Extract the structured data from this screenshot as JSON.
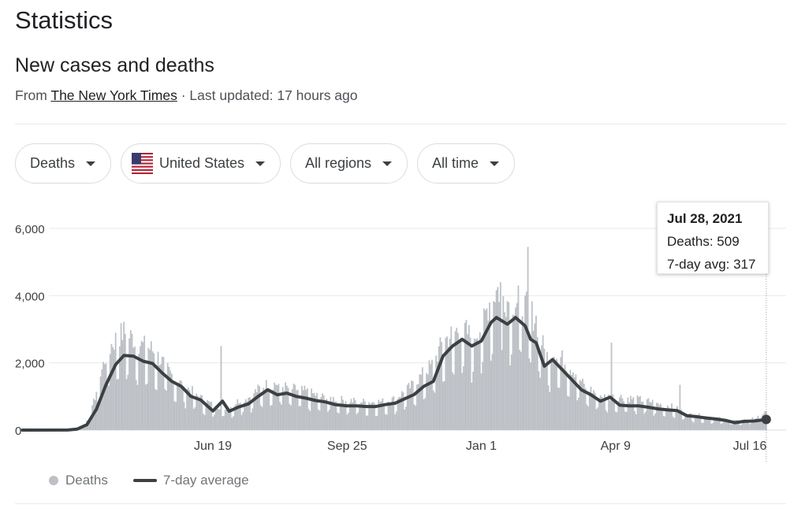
{
  "header": {
    "title": "Statistics",
    "subtitle": "New cases and deaths",
    "source_prefix": "From",
    "source_name": "The New York Times",
    "updated": "· Last updated: 17 hours ago"
  },
  "filters": [
    {
      "label": "Deaths",
      "name": "metric-filter"
    },
    {
      "label": "United States",
      "name": "location-filter",
      "icon": "us-flag-icon"
    },
    {
      "label": "All regions",
      "name": "region-filter"
    },
    {
      "label": "All time",
      "name": "time-range-filter"
    }
  ],
  "tooltip": {
    "date": "Jul 28, 2021",
    "deaths_label": "Deaths: 509",
    "avg_label": "7-day avg: 317"
  },
  "legend": {
    "bars_label": "Deaths",
    "line_label": "7-day average"
  },
  "colors": {
    "bars": "#bdc1c6",
    "line": "#3c4043",
    "grid": "#e8eaed",
    "text": "#202124",
    "subtext": "#4d5156"
  },
  "chart_data": {
    "type": "bar",
    "title": "",
    "xlabel": "",
    "ylabel": "",
    "ylim": [
      0,
      6000
    ],
    "yticks": [
      0,
      2000,
      4000,
      6000
    ],
    "ytick_labels": [
      "0",
      "2,000",
      "4,000",
      "6,000"
    ],
    "x_range": [
      "2020-02-01",
      "2021-07-28"
    ],
    "xticks": [
      {
        "label": "Jun 19",
        "date": "2020-06-19"
      },
      {
        "label": "Sep 25",
        "date": "2020-09-25"
      },
      {
        "label": "Jan 1",
        "date": "2021-01-01"
      },
      {
        "label": "Apr 9",
        "date": "2021-04-09"
      },
      {
        "label": "Jul 16",
        "date": "2021-07-16"
      }
    ],
    "grid": true,
    "legend_position": "bottom-left",
    "highlight": {
      "date": "2021-07-28",
      "deaths": 509,
      "avg": 317
    },
    "series": [
      {
        "name": "Deaths",
        "type": "bar",
        "points": [
          [
            "2020-02-01",
            0
          ],
          [
            "2020-03-01",
            5
          ],
          [
            "2020-03-10",
            30
          ],
          [
            "2020-03-17",
            120
          ],
          [
            "2020-03-22",
            450
          ],
          [
            "2020-03-27",
            1200
          ],
          [
            "2020-04-01",
            1900
          ],
          [
            "2020-04-06",
            2300
          ],
          [
            "2020-04-10",
            2500
          ],
          [
            "2020-04-15",
            2650
          ],
          [
            "2020-04-21",
            2500
          ],
          [
            "2020-04-28",
            2300
          ],
          [
            "2020-05-05",
            2200
          ],
          [
            "2020-05-12",
            1900
          ],
          [
            "2020-05-20",
            1500
          ],
          [
            "2020-05-27",
            1250
          ],
          [
            "2020-06-04",
            1050
          ],
          [
            "2020-06-11",
            850
          ],
          [
            "2020-06-19",
            680
          ],
          [
            "2020-06-26",
            620
          ],
          [
            "2020-07-01",
            600
          ],
          [
            "2020-07-08",
            800
          ],
          [
            "2020-07-15",
            880
          ],
          [
            "2020-07-22",
            1100
          ],
          [
            "2020-07-29",
            1250
          ],
          [
            "2020-08-05",
            1250
          ],
          [
            "2020-08-12",
            1150
          ],
          [
            "2020-08-19",
            1100
          ],
          [
            "2020-08-26",
            1050
          ],
          [
            "2020-09-02",
            950
          ],
          [
            "2020-09-09",
            880
          ],
          [
            "2020-09-16",
            850
          ],
          [
            "2020-09-25",
            800
          ],
          [
            "2020-10-02",
            780
          ],
          [
            "2020-10-09",
            760
          ],
          [
            "2020-10-16",
            760
          ],
          [
            "2020-10-23",
            780
          ],
          [
            "2020-10-30",
            850
          ],
          [
            "2020-11-06",
            1050
          ],
          [
            "2020-11-13",
            1250
          ],
          [
            "2020-11-20",
            1550
          ],
          [
            "2020-11-27",
            1800
          ],
          [
            "2020-12-04",
            2400
          ],
          [
            "2020-12-11",
            2600
          ],
          [
            "2020-12-18",
            2800
          ],
          [
            "2020-12-25",
            2500
          ],
          [
            "2021-01-01",
            2800
          ],
          [
            "2021-01-08",
            3600
          ],
          [
            "2021-01-13",
            3800
          ],
          [
            "2021-01-20",
            3500
          ],
          [
            "2021-01-27",
            3500
          ],
          [
            "2021-02-03",
            3300
          ],
          [
            "2021-02-10",
            3000
          ],
          [
            "2021-02-17",
            2000
          ],
          [
            "2021-02-24",
            2100
          ],
          [
            "2021-03-03",
            1850
          ],
          [
            "2021-03-10",
            1600
          ],
          [
            "2021-03-17",
            1200
          ],
          [
            "2021-03-24",
            1050
          ],
          [
            "2021-03-31",
            900
          ],
          [
            "2021-04-07",
            900
          ],
          [
            "2021-04-14",
            900
          ],
          [
            "2021-04-21",
            850
          ],
          [
            "2021-04-28",
            820
          ],
          [
            "2021-05-05",
            770
          ],
          [
            "2021-05-12",
            690
          ],
          [
            "2021-05-19",
            650
          ],
          [
            "2021-05-26",
            550
          ],
          [
            "2021-06-02",
            420
          ],
          [
            "2021-06-09",
            400
          ],
          [
            "2021-06-16",
            350
          ],
          [
            "2021-06-23",
            320
          ],
          [
            "2021-06-30",
            280
          ],
          [
            "2021-07-07",
            240
          ],
          [
            "2021-07-14",
            280
          ],
          [
            "2021-07-21",
            330
          ],
          [
            "2021-07-28",
            509
          ]
        ],
        "spikes": [
          [
            "2020-06-25",
            2500
          ],
          [
            "2021-02-04",
            5450
          ],
          [
            "2021-04-06",
            2600
          ],
          [
            "2021-05-26",
            1350
          ],
          [
            "2021-01-15",
            4400
          ],
          [
            "2021-01-28",
            4300
          ]
        ]
      },
      {
        "name": "7-day average",
        "type": "line",
        "points": [
          [
            "2020-02-01",
            0
          ],
          [
            "2020-03-05",
            2
          ],
          [
            "2020-03-12",
            30
          ],
          [
            "2020-03-19",
            160
          ],
          [
            "2020-03-26",
            620
          ],
          [
            "2020-04-02",
            1350
          ],
          [
            "2020-04-09",
            1950
          ],
          [
            "2020-04-15",
            2220
          ],
          [
            "2020-04-22",
            2200
          ],
          [
            "2020-04-29",
            2050
          ],
          [
            "2020-05-06",
            1980
          ],
          [
            "2020-05-13",
            1700
          ],
          [
            "2020-05-20",
            1450
          ],
          [
            "2020-05-27",
            1300
          ],
          [
            "2020-06-03",
            1000
          ],
          [
            "2020-06-10",
            900
          ],
          [
            "2020-06-19",
            570
          ],
          [
            "2020-06-26",
            860
          ],
          [
            "2020-07-01",
            560
          ],
          [
            "2020-07-08",
            690
          ],
          [
            "2020-07-15",
            780
          ],
          [
            "2020-07-22",
            1000
          ],
          [
            "2020-07-29",
            1200
          ],
          [
            "2020-08-05",
            1050
          ],
          [
            "2020-08-12",
            1100
          ],
          [
            "2020-08-19",
            1000
          ],
          [
            "2020-08-26",
            950
          ],
          [
            "2020-09-02",
            880
          ],
          [
            "2020-09-09",
            840
          ],
          [
            "2020-09-16",
            760
          ],
          [
            "2020-09-25",
            720
          ],
          [
            "2020-10-02",
            720
          ],
          [
            "2020-10-09",
            700
          ],
          [
            "2020-10-16",
            700
          ],
          [
            "2020-10-23",
            760
          ],
          [
            "2020-10-30",
            800
          ],
          [
            "2020-11-06",
            930
          ],
          [
            "2020-11-13",
            1060
          ],
          [
            "2020-11-20",
            1300
          ],
          [
            "2020-11-27",
            1450
          ],
          [
            "2020-12-04",
            2200
          ],
          [
            "2020-12-11",
            2500
          ],
          [
            "2020-12-18",
            2700
          ],
          [
            "2020-12-25",
            2500
          ],
          [
            "2021-01-01",
            2650
          ],
          [
            "2021-01-08",
            3200
          ],
          [
            "2021-01-12",
            3350
          ],
          [
            "2021-01-20",
            3150
          ],
          [
            "2021-01-26",
            3350
          ],
          [
            "2021-02-02",
            3100
          ],
          [
            "2021-02-06",
            2700
          ],
          [
            "2021-02-10",
            2600
          ],
          [
            "2021-02-16",
            1900
          ],
          [
            "2021-02-22",
            2100
          ],
          [
            "2021-03-01",
            1800
          ],
          [
            "2021-03-08",
            1500
          ],
          [
            "2021-03-15",
            1200
          ],
          [
            "2021-03-22",
            1050
          ],
          [
            "2021-03-29",
            860
          ],
          [
            "2021-04-05",
            980
          ],
          [
            "2021-04-12",
            740
          ],
          [
            "2021-04-19",
            720
          ],
          [
            "2021-04-26",
            720
          ],
          [
            "2021-05-03",
            680
          ],
          [
            "2021-05-10",
            630
          ],
          [
            "2021-05-17",
            600
          ],
          [
            "2021-05-24",
            580
          ],
          [
            "2021-05-31",
            430
          ],
          [
            "2021-06-07",
            400
          ],
          [
            "2021-06-14",
            360
          ],
          [
            "2021-06-21",
            330
          ],
          [
            "2021-06-28",
            290
          ],
          [
            "2021-07-05",
            220
          ],
          [
            "2021-07-12",
            260
          ],
          [
            "2021-07-19",
            270
          ],
          [
            "2021-07-28",
            317
          ]
        ]
      }
    ]
  }
}
